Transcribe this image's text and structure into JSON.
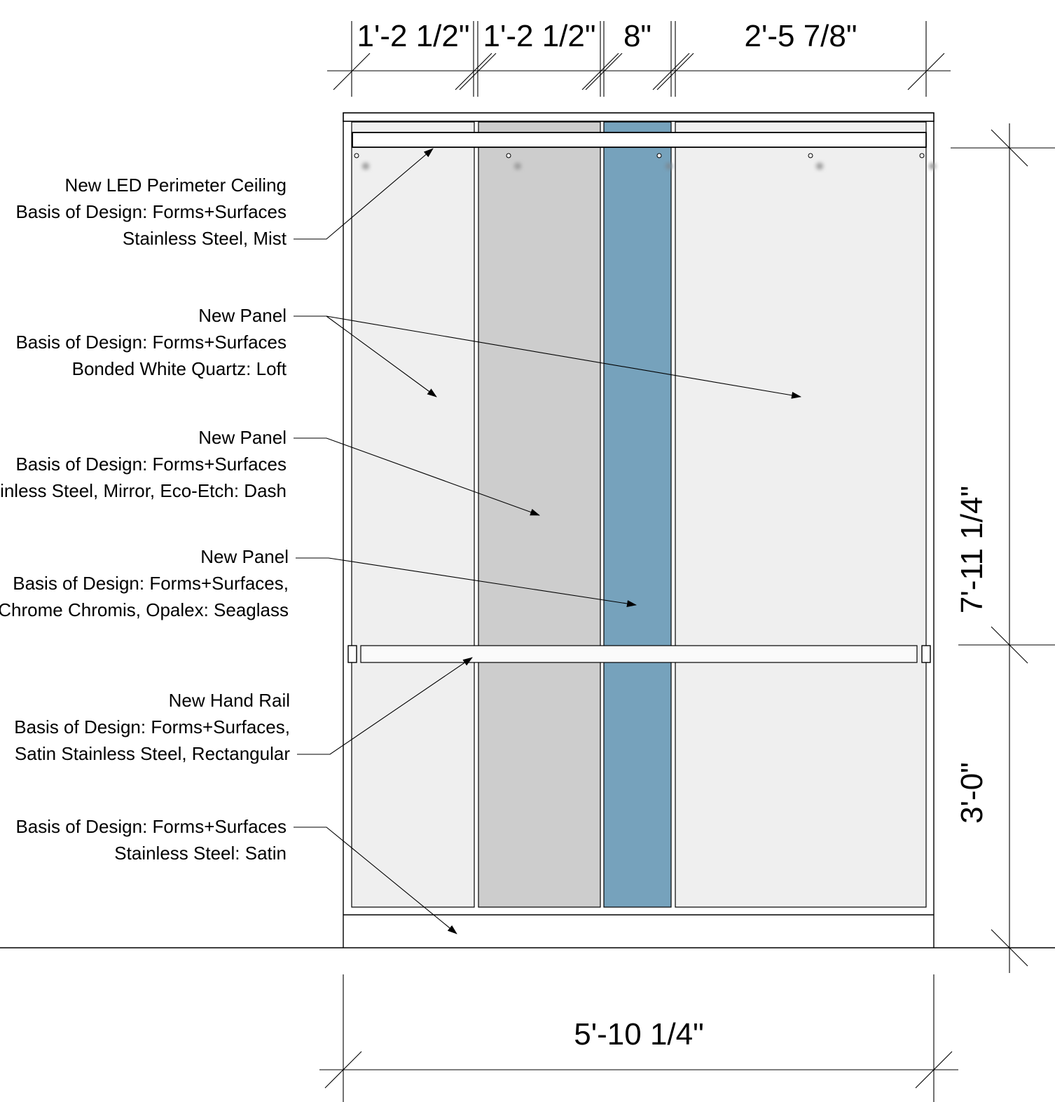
{
  "dimensions": {
    "top": [
      {
        "id": "seg-1",
        "label": "1'-2 1/2\""
      },
      {
        "id": "seg-2",
        "label": "1'-2 1/2\""
      },
      {
        "id": "seg-3",
        "label": "8\""
      },
      {
        "id": "seg-4",
        "label": "2'-5 7/8\""
      }
    ],
    "overall_width": "5'-10 1/4\"",
    "upper_height": "7'-11 1/4\"",
    "rail_height": "3'-0\""
  },
  "callouts": {
    "ceiling": {
      "lines": [
        "New LED Perimeter Ceiling",
        "Basis of Design: Forms+Surfaces",
        "Stainless Steel, Mist"
      ]
    },
    "quartz_panel": {
      "lines": [
        "New Panel",
        "Basis of Design: Forms+Surfaces",
        "Bonded White Quartz: Loft"
      ]
    },
    "mirror_panel": {
      "lines": [
        "New Panel",
        "Basis of Design: Forms+Surfaces",
        "Stainless Steel, Mirror, Eco-Etch: Dash"
      ]
    },
    "opalex_panel": {
      "lines": [
        "New Panel",
        "Basis of Design: Forms+Surfaces,",
        "Chrome Chromis, Opalex: Seaglass"
      ]
    },
    "hand_rail": {
      "lines": [
        "New Hand Rail",
        "Basis of Design: Forms+Surfaces,",
        "Satin Stainless Steel, Rectangular"
      ]
    },
    "base": {
      "lines": [
        "Basis of Design: Forms+Surfaces",
        "Stainless Steel: Satin"
      ]
    }
  },
  "colors": {
    "quartz": "#efefef",
    "mirror": "#cdcdcd",
    "opalex": "#76a2bc",
    "rail": "#fafafa"
  }
}
